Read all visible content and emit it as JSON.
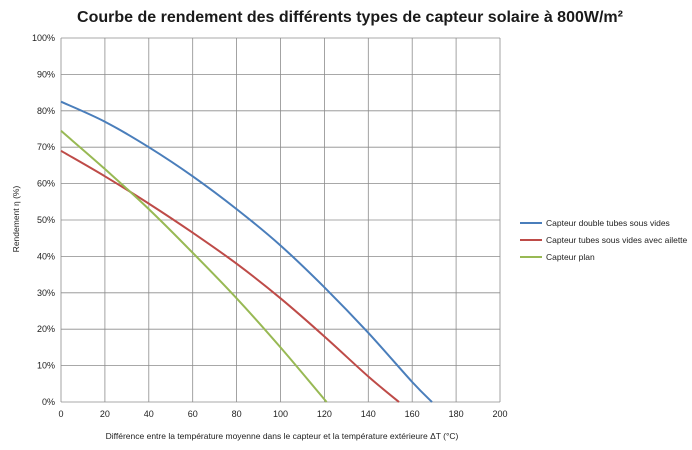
{
  "chart_data": {
    "type": "line",
    "title": "Courbe de rendement des différents types de capteur solaire à 800W/m²",
    "xlabel": "Différence entre la température moyenne dans le capteur et la température extérieure ΔT (°C)",
    "ylabel": "Rendement η (%)",
    "xlim": [
      0,
      200
    ],
    "ylim": [
      0,
      100
    ],
    "x_ticks": [
      "0",
      "20",
      "40",
      "60",
      "80",
      "100",
      "120",
      "140",
      "160",
      "180",
      "200"
    ],
    "y_ticks": [
      "0%",
      "10%",
      "20%",
      "30%",
      "40%",
      "50%",
      "60%",
      "70%",
      "80%",
      "90%",
      "100%"
    ],
    "grid": true,
    "legend_position": "right",
    "series": [
      {
        "name": "Capteur double tubes sous vides",
        "color": "#4a7ebb",
        "x": [
          0,
          20,
          40,
          60,
          80,
          100,
          120,
          140,
          160,
          169
        ],
        "y": [
          82.5,
          77,
          70,
          62,
          53,
          43,
          31.5,
          19,
          5.5,
          0
        ]
      },
      {
        "name": "Capteur tubes sous vides avec ailette",
        "color": "#be4b48",
        "x": [
          0,
          20,
          40,
          60,
          80,
          100,
          120,
          140,
          154
        ],
        "y": [
          69,
          62,
          54.5,
          46.5,
          38,
          28.5,
          18,
          7,
          0
        ]
      },
      {
        "name": "Capteur plan",
        "color": "#98b954",
        "x": [
          0,
          20,
          40,
          60,
          80,
          100,
          121
        ],
        "y": [
          74.5,
          64,
          53,
          41,
          28.5,
          15,
          0
        ]
      }
    ]
  }
}
